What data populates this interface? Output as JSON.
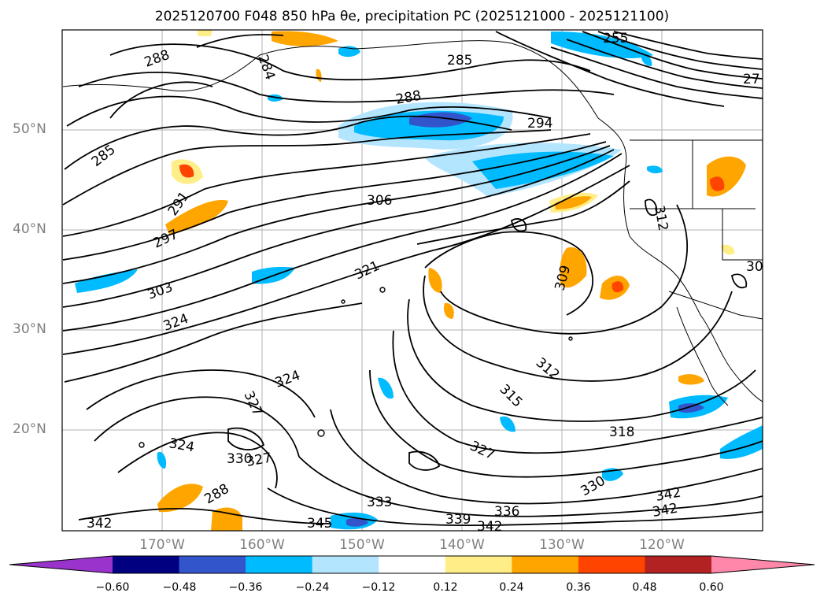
{
  "title": "2025120700 F048 850 hPa θe, precipitation PC (2025121000 - 2025121100)",
  "map": {
    "lat_labels": [
      "50°N",
      "40°N",
      "30°N",
      "20°N"
    ],
    "lon_labels": [
      "170°W",
      "160°W",
      "150°W",
      "140°W",
      "130°W",
      "120°W"
    ],
    "grid": true
  },
  "contour_labels": [
    "288",
    "284",
    "285",
    "288",
    "285",
    "294",
    "291",
    "297",
    "306",
    "312",
    "303",
    "321",
    "309",
    "324",
    "312",
    "324",
    "315",
    "327",
    "318",
    "324",
    "330",
    "327",
    "327",
    "330",
    "333",
    "336",
    "342",
    "342",
    "339",
    "342",
    "345",
    "342",
    "30",
    "255",
    "27"
  ],
  "colorbar": {
    "ticks": [
      "−0.60",
      "−0.48",
      "−0.36",
      "−0.24",
      "−0.12",
      "0.12",
      "0.24",
      "0.36",
      "0.48",
      "0.60"
    ],
    "colors": [
      "#9933cc",
      "#000080",
      "#3355cc",
      "#00bbff",
      "#b3e5ff",
      "#ffffff",
      "#ffee88",
      "#ffa500",
      "#ff4400",
      "#b22222",
      "#ff88aa"
    ]
  }
}
